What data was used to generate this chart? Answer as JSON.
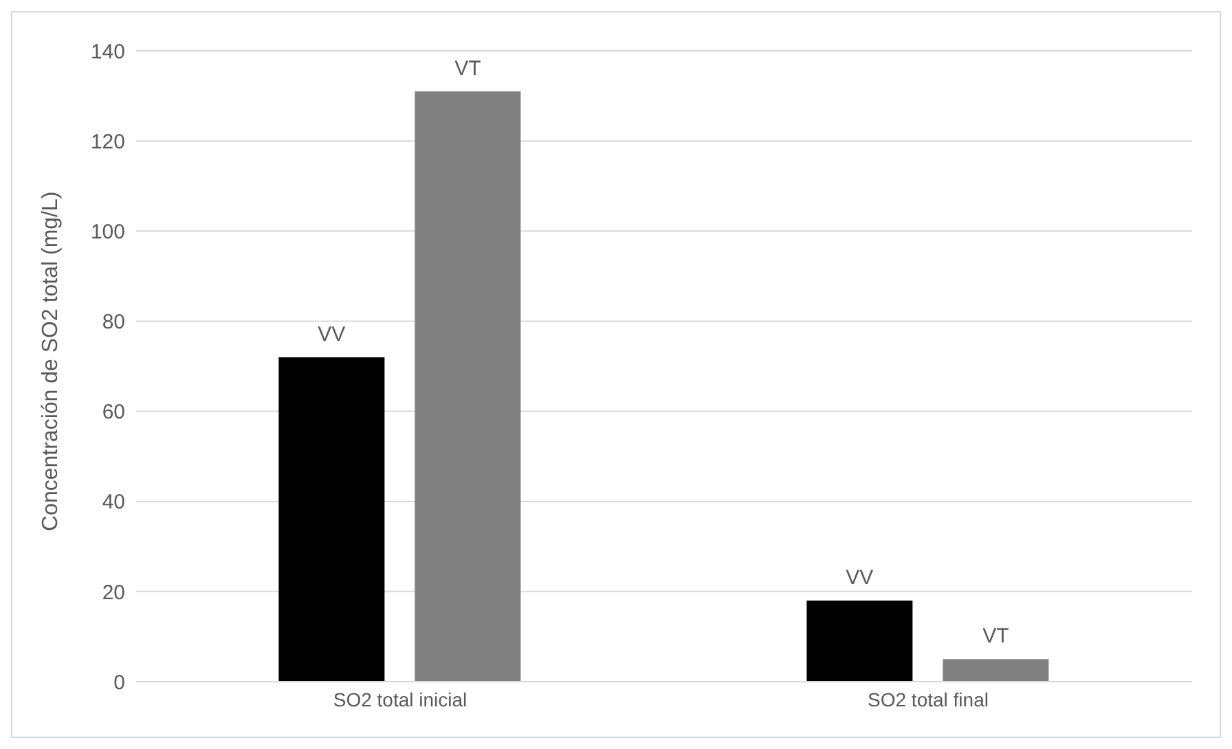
{
  "chart_data": {
    "type": "bar",
    "ylabel": "Concentración de SO2 total (mg/L)",
    "categories": [
      "SO2 total inicial",
      "SO2 total final"
    ],
    "series": [
      {
        "name": "VV",
        "color": "#000000",
        "values": [
          72,
          18
        ]
      },
      {
        "name": "VT",
        "color": "#808080",
        "values": [
          131,
          5
        ]
      }
    ],
    "ylim": [
      0,
      140
    ],
    "yticks": [
      0,
      20,
      40,
      60,
      80,
      100,
      120,
      140
    ],
    "grid": "y",
    "legend": false
  }
}
